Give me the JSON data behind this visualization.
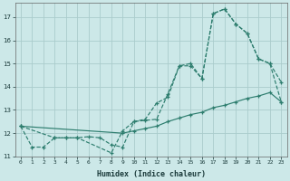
{
  "title": "",
  "xlabel": "Humidex (Indice chaleur)",
  "bg_color": "#cce8e8",
  "grid_color": "#aacccc",
  "line_color": "#2d7d6e",
  "xlim": [
    -0.5,
    23.5
  ],
  "ylim": [
    11.0,
    17.6
  ],
  "yticks": [
    11,
    12,
    13,
    14,
    15,
    16,
    17
  ],
  "xticks": [
    0,
    1,
    2,
    3,
    4,
    5,
    6,
    7,
    8,
    9,
    10,
    11,
    12,
    13,
    14,
    15,
    16,
    17,
    18,
    19,
    20,
    21,
    22,
    23
  ],
  "line1_x": [
    0,
    1,
    2,
    3,
    4,
    5,
    6,
    7,
    8,
    9,
    10,
    11,
    12,
    13,
    14,
    15,
    16,
    17,
    18,
    19,
    20,
    21,
    22,
    23
  ],
  "line1_y": [
    12.3,
    11.4,
    11.4,
    11.8,
    11.8,
    11.8,
    11.85,
    11.8,
    11.5,
    11.4,
    12.5,
    12.6,
    13.3,
    13.55,
    14.9,
    15.0,
    14.35,
    17.15,
    17.35,
    16.7,
    16.3,
    15.2,
    15.0,
    14.2
  ],
  "line2_x": [
    0,
    3,
    4,
    5,
    8,
    9,
    10,
    11,
    12,
    13,
    14,
    15,
    16,
    17,
    18,
    19,
    20,
    21,
    22,
    23
  ],
  "line2_y": [
    12.3,
    11.8,
    11.8,
    11.8,
    11.15,
    12.1,
    12.5,
    12.55,
    12.6,
    13.7,
    14.9,
    14.9,
    14.35,
    17.15,
    17.35,
    16.7,
    16.3,
    15.2,
    15.0,
    13.35
  ],
  "line3_x": [
    0,
    9,
    10,
    11,
    12,
    13,
    14,
    15,
    16,
    17,
    18,
    19,
    20,
    21,
    22,
    23
  ],
  "line3_y": [
    12.3,
    12.0,
    12.1,
    12.2,
    12.3,
    12.5,
    12.65,
    12.8,
    12.9,
    13.1,
    13.2,
    13.35,
    13.5,
    13.6,
    13.75,
    13.35
  ]
}
